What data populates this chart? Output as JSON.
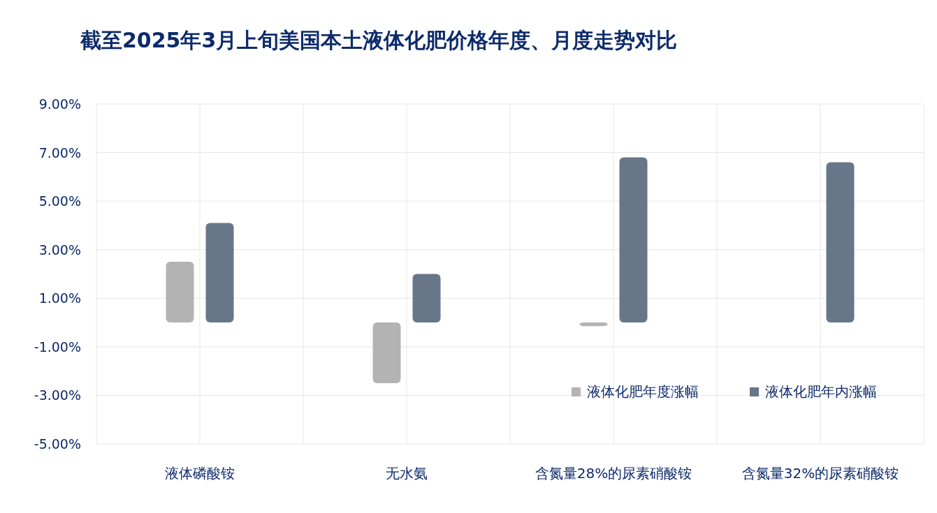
{
  "chart_data": {
    "type": "bar",
    "title": "截至2025年3月上旬美国本土液体化肥价格年度、月度走势对比",
    "categories": [
      "液体磷酸铵",
      "无水氨",
      "含氮量28%的尿素硝酸铵",
      "含氮量32%的尿素硝酸铵"
    ],
    "series": [
      {
        "name": "液体化肥年度涨幅",
        "color": "#b3b3b3",
        "values": [
          2.5,
          -2.5,
          -0.15,
          null
        ]
      },
      {
        "name": "液体化肥年内涨幅",
        "color": "#687689",
        "values": [
          4.1,
          2.0,
          6.8,
          6.6
        ]
      }
    ],
    "ylim": [
      -5,
      9
    ],
    "yticks": [
      {
        "value": -5,
        "label": "-5.00%"
      },
      {
        "value": -3,
        "label": "-3.00%"
      },
      {
        "value": -1,
        "label": "-1.00%"
      },
      {
        "value": 1,
        "label": "1.00%"
      },
      {
        "value": 3,
        "label": "3.00%"
      },
      {
        "value": 5,
        "label": "5.00%"
      },
      {
        "value": 7,
        "label": "7.00%"
      },
      {
        "value": 9,
        "label": "9.00%"
      }
    ],
    "grid": true,
    "legend": "bottom right"
  }
}
